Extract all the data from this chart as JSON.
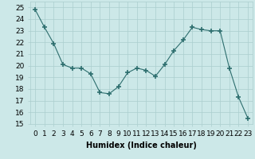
{
  "x": [
    0,
    1,
    2,
    3,
    4,
    5,
    6,
    7,
    8,
    9,
    10,
    11,
    12,
    13,
    14,
    15,
    16,
    17,
    18,
    19,
    20,
    21,
    22,
    23
  ],
  "y": [
    24.8,
    23.3,
    21.9,
    20.1,
    19.8,
    19.8,
    19.3,
    17.7,
    17.6,
    18.2,
    19.4,
    19.8,
    19.6,
    19.1,
    20.1,
    21.3,
    22.2,
    23.3,
    23.1,
    23.0,
    23.0,
    19.8,
    17.3,
    15.5
  ],
  "line_color": "#2d6e6e",
  "marker": "+",
  "marker_size": 4,
  "bg_color": "#cce8e8",
  "grid_color": "#aacece",
  "xlabel": "Humidex (Indice chaleur)",
  "ylim": [
    15,
    25.5
  ],
  "yticks": [
    15,
    16,
    17,
    18,
    19,
    20,
    21,
    22,
    23,
    24,
    25
  ],
  "xticks": [
    0,
    1,
    2,
    3,
    4,
    5,
    6,
    7,
    8,
    9,
    10,
    11,
    12,
    13,
    14,
    15,
    16,
    17,
    18,
    19,
    20,
    21,
    22,
    23
  ],
  "label_fontsize": 7,
  "tick_fontsize": 6.5
}
